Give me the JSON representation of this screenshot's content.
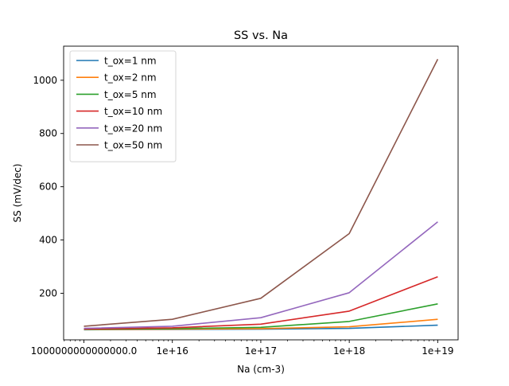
{
  "chart_data": {
    "type": "line",
    "title": "SS vs. Na",
    "xlabel": "Na (cm-3)",
    "ylabel": "SS (mV/dec)",
    "x_scale": "log",
    "x": [
      1000000000000000.0,
      1e+16,
      1e+17,
      1e+18,
      1e+19
    ],
    "x_tick_labels": [
      "1000000000000000.0",
      "1e+16",
      "1e+17",
      "1e+18",
      "1e+19"
    ],
    "xlim": [
      590000000000000.0,
      1.7e+19
    ],
    "ylim": [
      25,
      1128
    ],
    "y_ticks": [
      200,
      400,
      600,
      800,
      1000
    ],
    "grid": false,
    "legend_position": "top-left",
    "series": [
      {
        "name": "t_ox=1 nm",
        "color": "#1f77b4",
        "values": [
          63,
          64,
          65,
          68,
          80
        ]
      },
      {
        "name": "t_ox=2 nm",
        "color": "#ff7f0e",
        "values": [
          64,
          65,
          67,
          74,
          102
        ]
      },
      {
        "name": "t_ox=5 nm",
        "color": "#2ca02c",
        "values": [
          65,
          67,
          72,
          94,
          160
        ]
      },
      {
        "name": "t_ox=10 nm",
        "color": "#d62728",
        "values": [
          66,
          70,
          84,
          133,
          262
        ]
      },
      {
        "name": "t_ox=20 nm",
        "color": "#9467bd",
        "values": [
          68,
          76,
          108,
          202,
          468
        ]
      },
      {
        "name": "t_ox=50 nm",
        "color": "#8c564b",
        "values": [
          76,
          102,
          181,
          424,
          1079
        ]
      }
    ]
  }
}
